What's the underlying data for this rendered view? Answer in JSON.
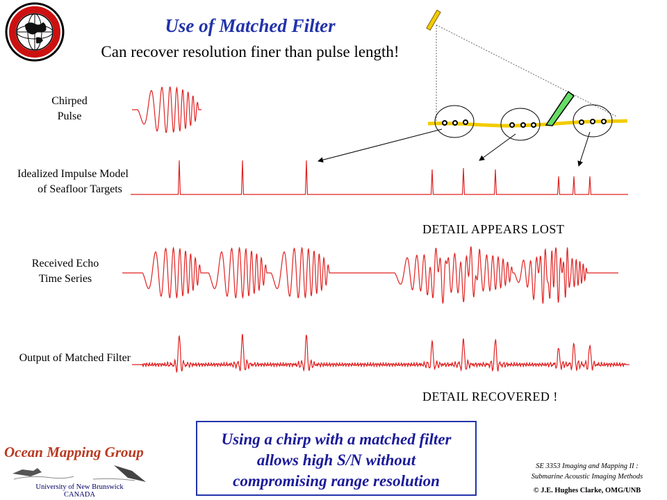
{
  "slide": {
    "title": "Use of Matched Filter",
    "subtitle": "Can recover resolution finer than pulse length!",
    "logo_text": "GEODESY AND GEOMATICS ENGINEERING · UNB",
    "row_labels": {
      "chirped_pulse": [
        "Chirped",
        "Pulse"
      ],
      "impulse_model": [
        "Idealized Impulse Model",
        "of Seafloor Targets"
      ],
      "received_echo": [
        "Received Echo",
        "Time Series"
      ],
      "matched_output": "Output of Matched Filter"
    },
    "captions": {
      "lost": "DETAIL APPEARS LOST",
      "recovered": "DETAIL RECOVERED !"
    },
    "summary": [
      "Using a chirp with a matched filter",
      "allows high S/N without",
      "compromising range resolution"
    ],
    "course": [
      "SE 3353 Imaging and Mapping II :",
      "Submarine Acoustic Imaging Methods"
    ],
    "copyright": "© J.E. Hughes Clarke, OMG/UNB",
    "group": {
      "name": "Ocean Mapping Group",
      "university": [
        "University of New Brunswick",
        "CANADA"
      ]
    }
  },
  "colors": {
    "signal": "#e02222",
    "title": "#2233aa",
    "seafloor": "#f2cc00",
    "feature": "#66dd66",
    "group_name": "#b83a22"
  },
  "icons": [
    "university-seal-icon",
    "transducer-icon",
    "sonar-fish-icon"
  ]
}
